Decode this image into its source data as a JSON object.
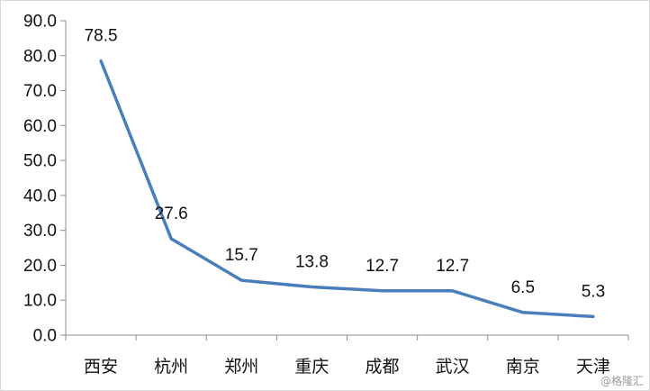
{
  "chart_data": {
    "type": "line",
    "categories": [
      "西安",
      "杭州",
      "郑州",
      "重庆",
      "成都",
      "武汉",
      "南京",
      "天津"
    ],
    "series": [
      {
        "values": [
          78.5,
          27.6,
          15.7,
          13.8,
          12.7,
          12.7,
          6.5,
          5.3
        ]
      }
    ],
    "data_labels": [
      "78.5",
      "27.6",
      "15.7",
      "13.8",
      "12.7",
      "12.7",
      "6.5",
      "5.3"
    ],
    "yticks": [
      "0.0",
      "10.0",
      "20.0",
      "30.0",
      "40.0",
      "50.0",
      "60.0",
      "70.0",
      "80.0",
      "90.0"
    ],
    "ylim": [
      0,
      90
    ],
    "grid": false,
    "line_color": "#4a7ebb",
    "title": "",
    "xlabel": "",
    "ylabel": ""
  },
  "watermark": "@格隆汇"
}
